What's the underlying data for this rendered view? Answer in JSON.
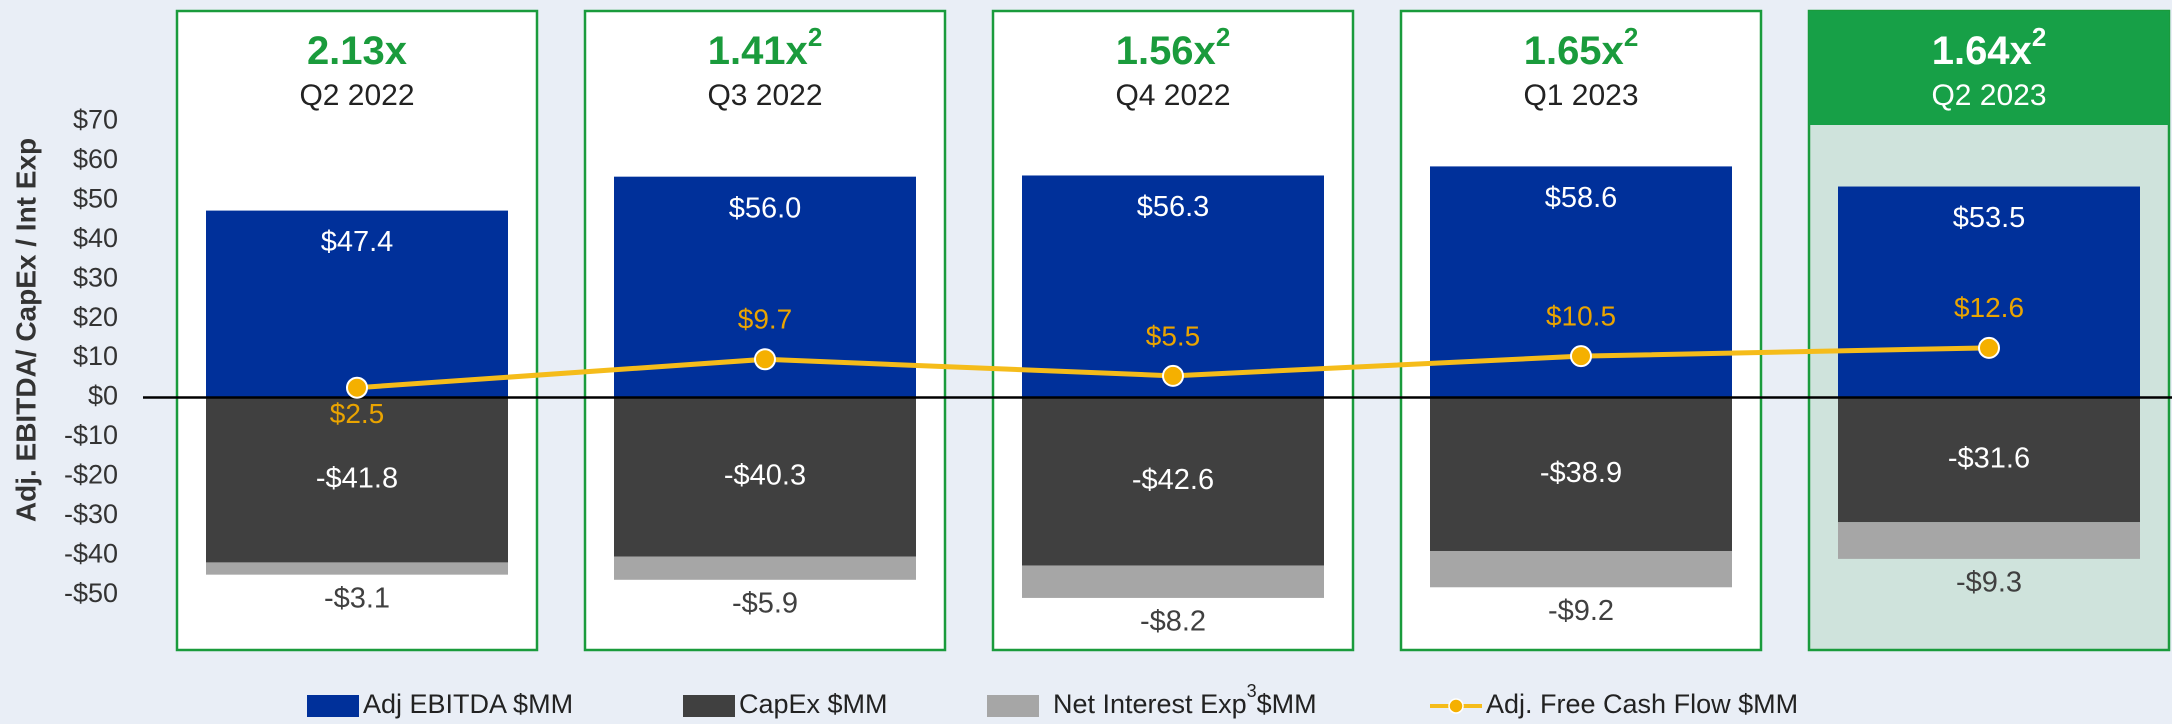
{
  "chart_data": {
    "type": "bar",
    "stacked": true,
    "y_label": "Adj. EBITDA/ CapEx / Int Exp",
    "categories": [
      "Q2 2022",
      "Q3 2022",
      "Q4 2022",
      "Q1 2023",
      "Q2 2023"
    ],
    "ratio_labels": [
      {
        "text": "2.13x"
      },
      {
        "text": "1.41x",
        "footnote": "2"
      },
      {
        "text": "1.56x",
        "footnote": "2"
      },
      {
        "text": "1.65x",
        "footnote": "2"
      },
      {
        "text": "1.64x",
        "footnote": "2"
      }
    ],
    "series": [
      {
        "name": "Adj EBITDA $MM",
        "color": "#00309a",
        "values": [
          47.4,
          56.0,
          56.3,
          58.6,
          53.5
        ],
        "value_labels": [
          "$47.4",
          "$56.0",
          "$56.3",
          "$58.6",
          "$53.5"
        ]
      },
      {
        "name": "CapEx $MM",
        "color": "#404040",
        "values": [
          -41.8,
          -40.3,
          -42.6,
          -38.9,
          -31.6
        ],
        "value_labels": [
          "-$41.8",
          "-$40.3",
          "-$42.6",
          "-$38.9",
          "-$31.6"
        ]
      },
      {
        "name": "Net Interest Exp",
        "footnote": "3",
        "name_end": "$MM",
        "color": "#a6a6a6",
        "values": [
          -3.1,
          -5.9,
          -8.2,
          -9.2,
          -9.3
        ],
        "value_labels": [
          "-$3.1",
          "-$5.9",
          "-$8.2",
          "-$9.2",
          "-$9.3"
        ]
      },
      {
        "name": "Adj. Free Cash Flow $MM",
        "type": "line",
        "color": "#f5bc1a",
        "values": [
          2.5,
          9.7,
          5.5,
          10.5,
          12.6
        ],
        "value_labels": [
          "$2.5",
          "$9.7",
          "$5.5",
          "$10.5",
          "$12.6"
        ]
      }
    ],
    "ylim": [
      -64,
      98
    ],
    "yticks": [
      {
        "value": 70,
        "label": "$70"
      },
      {
        "value": 60,
        "label": "$60"
      },
      {
        "value": 50,
        "label": "$50"
      },
      {
        "value": 40,
        "label": "$40"
      },
      {
        "value": 30,
        "label": "$30"
      },
      {
        "value": 20,
        "label": "$20"
      },
      {
        "value": 10,
        "label": "$10"
      },
      {
        "value": 0,
        "label": "$0"
      },
      {
        "value": -10,
        "label": "-$10"
      },
      {
        "value": -20,
        "label": "-$20"
      },
      {
        "value": -30,
        "label": "-$30"
      },
      {
        "value": -40,
        "label": "-$40"
      },
      {
        "value": -50,
        "label": "-$50"
      }
    ],
    "grid": false,
    "legend": "bottom"
  }
}
